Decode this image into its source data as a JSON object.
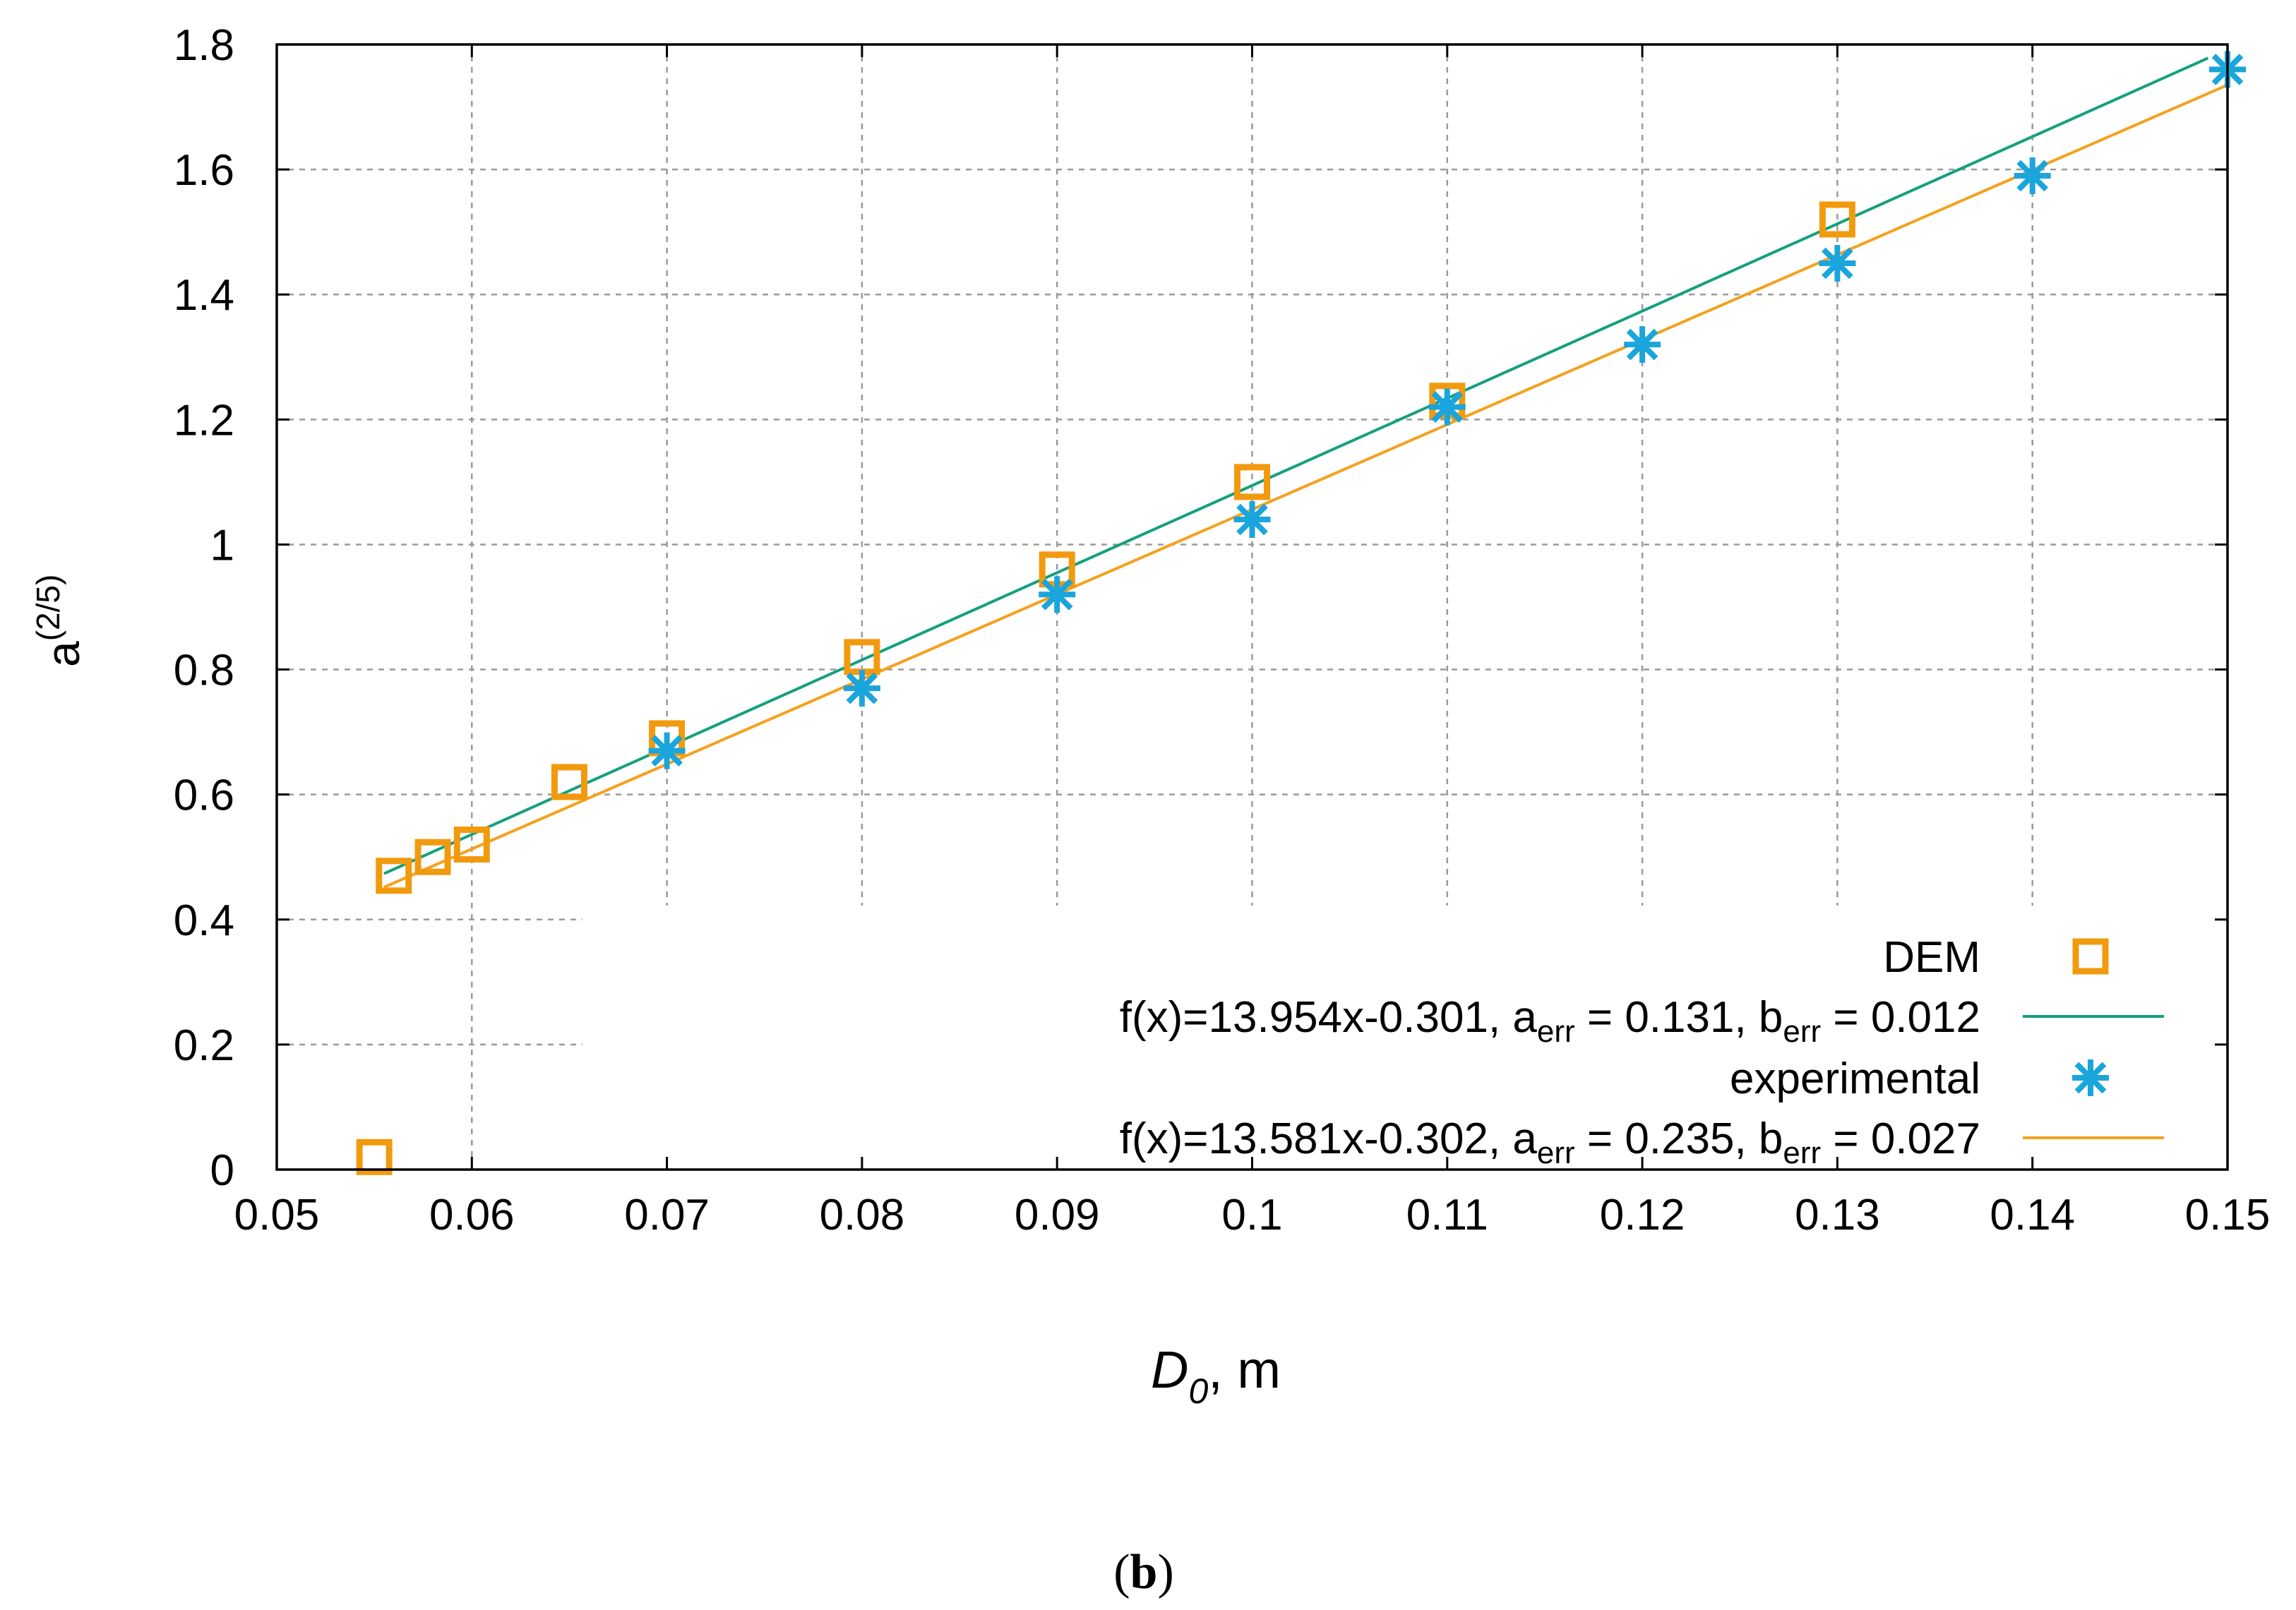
{
  "chart_data": {
    "type": "scatter",
    "title": "",
    "xlabel_symbol": "D",
    "xlabel_subscript": "0",
    "xlabel_unit": ", m",
    "ylabel_base": "a",
    "ylabel_superscript": "(2/5)",
    "xlim": [
      0.05,
      0.15
    ],
    "ylim": [
      0,
      1.8
    ],
    "xticks": [
      "0.05",
      "0.06",
      "0.07",
      "0.08",
      "0.09",
      "0.1",
      "0.11",
      "0.12",
      "0.13",
      "0.14",
      "0.15"
    ],
    "yticks": [
      "0",
      "0.2",
      "0.4",
      "0.6",
      "0.8",
      "1",
      "1.2",
      "1.4",
      "1.6",
      "1.8"
    ],
    "grid": true,
    "legend_position": "bottom-right",
    "series": [
      {
        "name": "DEM",
        "marker": "square",
        "color": "#f29a0e",
        "x": [
          0.055,
          0.056,
          0.058,
          0.06,
          0.065,
          0.07,
          0.08,
          0.09,
          0.1,
          0.11,
          0.13
        ],
        "y": [
          0.02,
          0.47,
          0.5,
          0.52,
          0.62,
          0.69,
          0.82,
          0.96,
          1.1,
          1.23,
          1.52
        ]
      },
      {
        "name": "experimental",
        "marker": "asterisk",
        "color": "#1aa5dc",
        "x": [
          0.07,
          0.08,
          0.09,
          0.1,
          0.11,
          0.12,
          0.13,
          0.14,
          0.15
        ],
        "y": [
          0.67,
          0.77,
          0.92,
          1.04,
          1.22,
          1.32,
          1.45,
          1.59,
          1.76
        ]
      }
    ],
    "fits": [
      {
        "label_main": "f(x)=13.954x-0.301, a",
        "label_mid": " = 0.131, b",
        "label_end": " = 0.012",
        "sub": "err",
        "slope": 13.954,
        "intercept": -0.301,
        "x_range": [
          0.0555,
          0.149
        ],
        "color": "#13a07e"
      },
      {
        "label_main": "f(x)=13.581x-0.302, a",
        "label_mid": " = 0.235, b",
        "label_end": " = 0.027",
        "sub": "err",
        "slope": 13.581,
        "intercept": -0.302,
        "x_range": [
          0.0555,
          0.15
        ],
        "color": "#f5a01d"
      }
    ]
  },
  "caption": {
    "open": "(",
    "letter": "b",
    "close": ")"
  }
}
